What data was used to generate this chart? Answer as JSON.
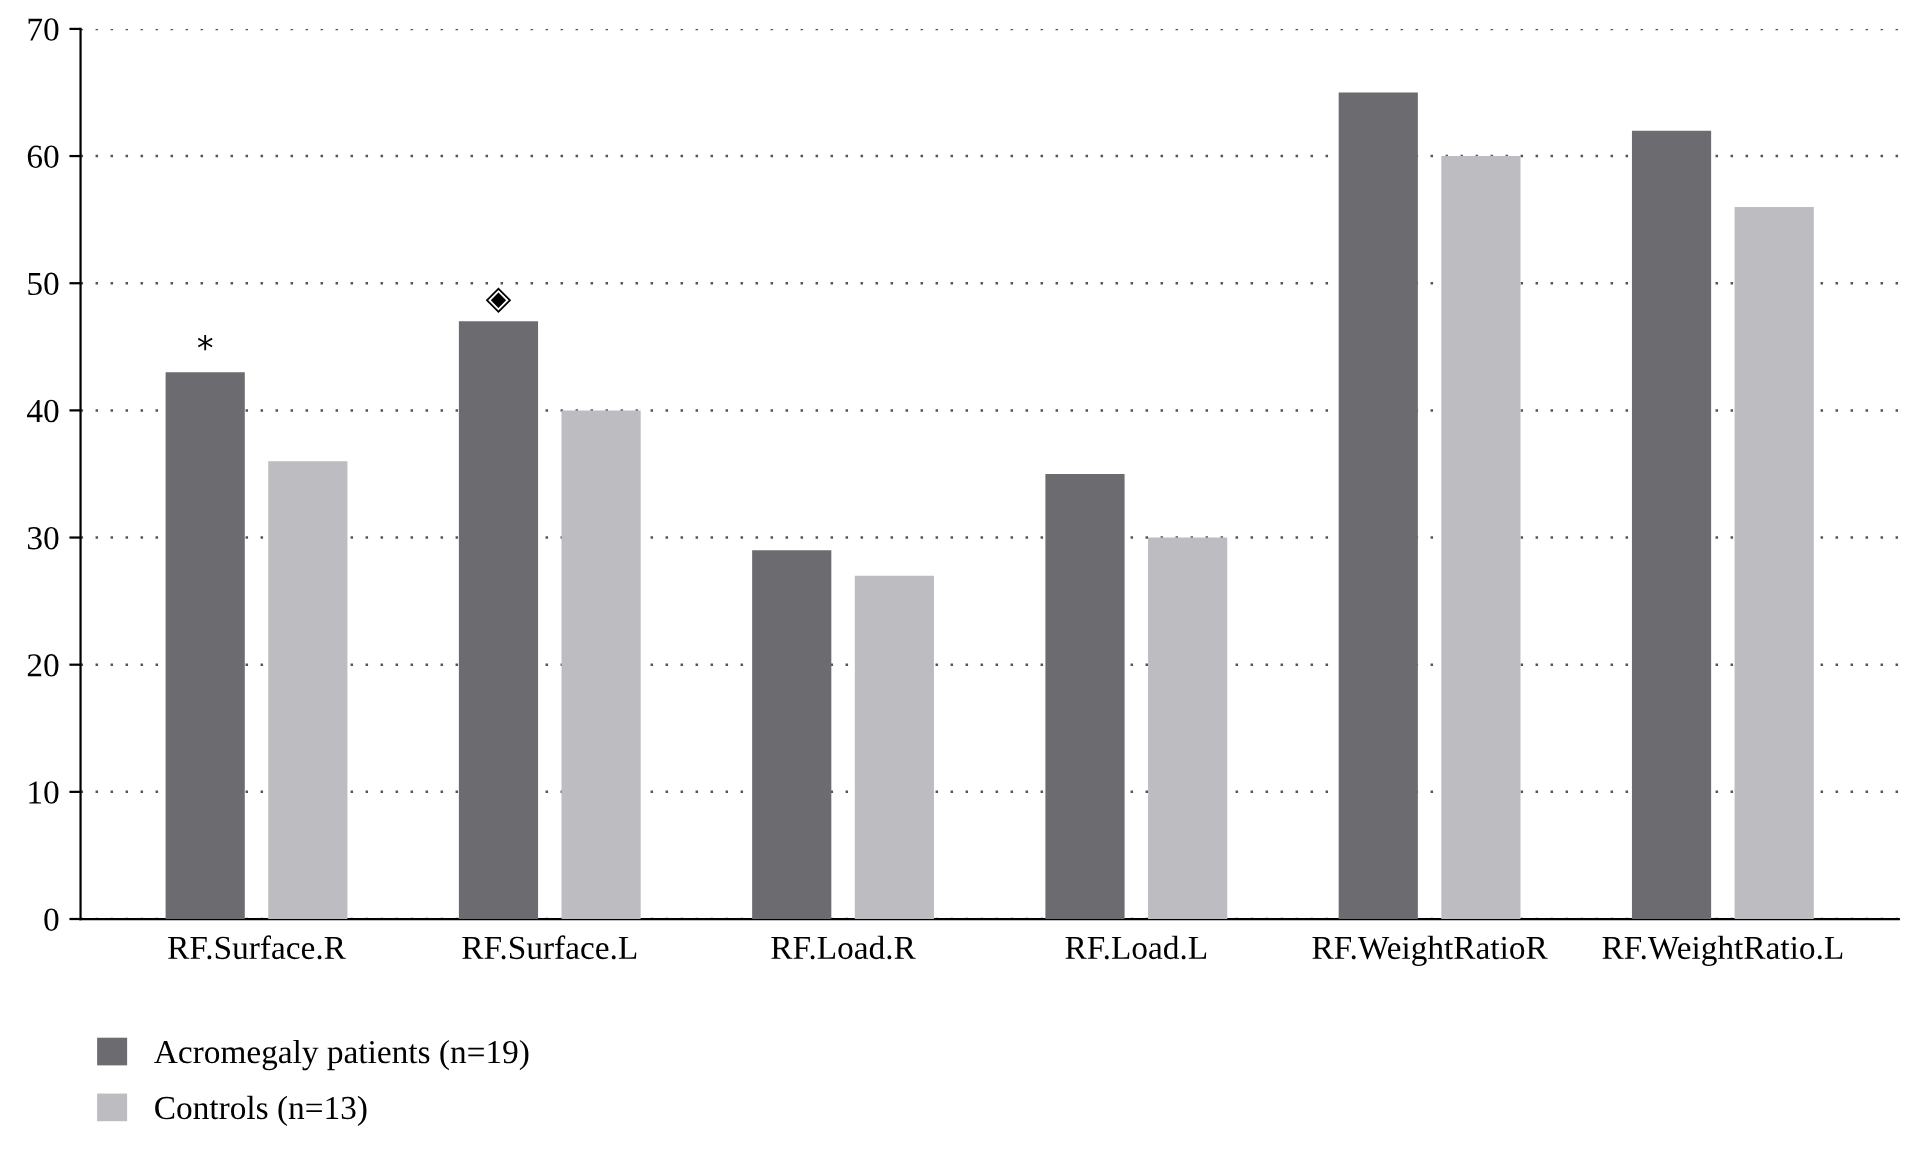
{
  "chart_data": {
    "type": "bar",
    "categories": [
      "RF.Surface.R",
      "RF.Surface.L",
      "RF.Load.R",
      "RF.Load.L",
      "RF.WeightRatioR",
      "RF.WeightRatio.L"
    ],
    "series": [
      {
        "name": "Acromegaly patients (n=19)",
        "color": "#6b6b70",
        "values": [
          43,
          47,
          29,
          35,
          65,
          62
        ]
      },
      {
        "name": "Controls (n=13)",
        "color": "#bdbdc1",
        "values": [
          36,
          40,
          27,
          30,
          60,
          56
        ]
      }
    ],
    "ylim": [
      0,
      70
    ],
    "yticks": [
      0,
      10,
      20,
      30,
      40,
      50,
      60,
      70
    ],
    "grid": "y",
    "legend": "bottom left",
    "annotations": [
      "*",
      "◈"
    ]
  }
}
